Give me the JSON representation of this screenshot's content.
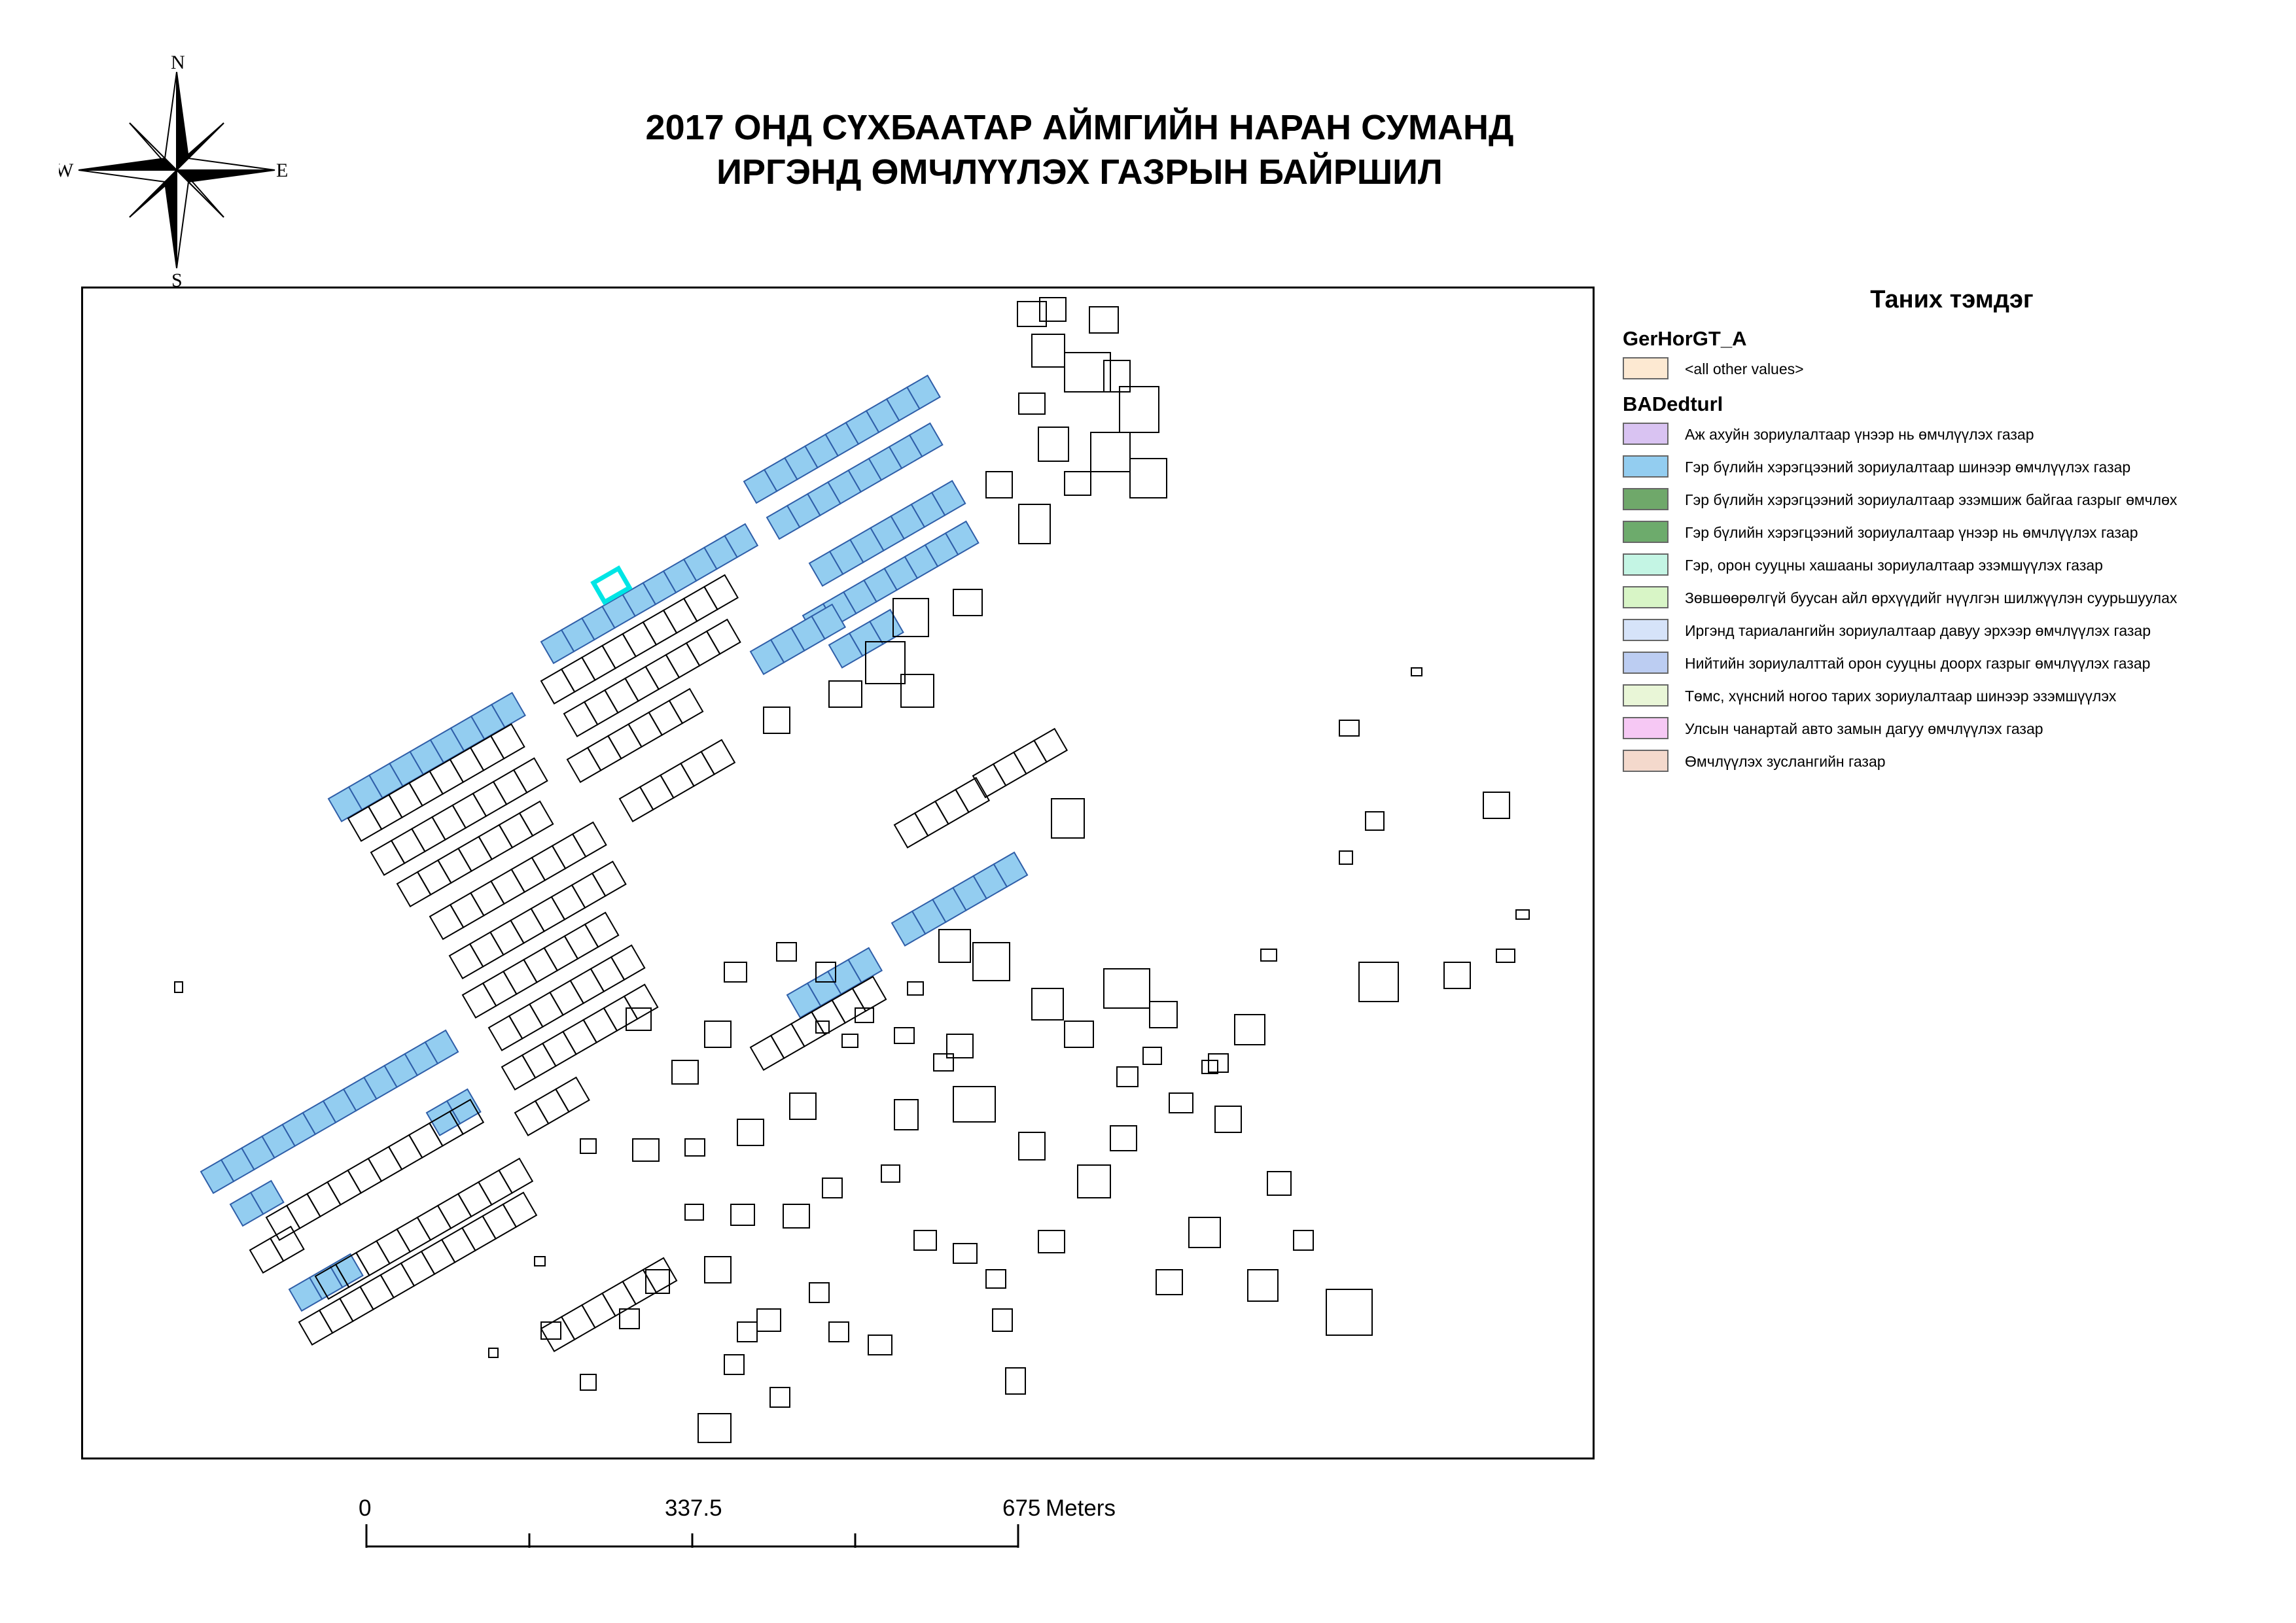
{
  "title": {
    "line1": "2017 ОНД СҮХБААТАР АЙМГИЙН НАРАН СУМАНД",
    "line2": "ИРГЭНД ӨМЧЛҮҮЛЭХ ГАЗРЫН БАЙРШИЛ"
  },
  "compass": {
    "north": "N",
    "south": "S",
    "east": "E",
    "west": "W"
  },
  "legend": {
    "title": "Таних тэмдэг",
    "layer1": {
      "name": "GerHorGT_A",
      "items": [
        {
          "label": "<all other values>",
          "color": "#fde9d2"
        }
      ]
    },
    "layer2": {
      "name": "BADedturl",
      "items": [
        {
          "label": "Аж ахуйн зориулалтаар үнээр нь өмчлүүлэх газар",
          "color": "#d9c3f2"
        },
        {
          "label": "Гэр бүлийн хэрэгцээний зориулалтаар шинээр  өмчлүүлэх газар",
          "color": "#93cdf0"
        },
        {
          "label": "Гэр бүлийн хэрэгцээний зориулалтаар эзэмшиж байгаа газрыг өмчлөх",
          "color": "#6fa86a"
        },
        {
          "label": "Гэр бүлийн хэрэгцээний зориулалтаар үнээр нь өмчлүүлэх газар",
          "color": "#6dab6c"
        },
        {
          "label": "Гэр, орон сууцны хашааны зориулалтаар  эзэмшүүлэх газар",
          "color": "#c4f5e4"
        },
        {
          "label": "Зөвшөөрөлгүй буусан айл өрхүүдийг нүүлгэн шилжүүлэн суурьшуулах",
          "color": "#d8f5c6"
        },
        {
          "label": "Иргэнд тариалангийн зориулалтаар давуу эрхээр өмчлүүлэх газар",
          "color": "#d6e3f9"
        },
        {
          "label": "Нийтийн зориулалттай орон сууцны доорх газрыг өмчлүүлэх газар",
          "color": "#bccdf2"
        },
        {
          "label": "Төмс, хүнсний ногоо тарих зориулалтаар шинээр эзэмшүүлэх",
          "color": "#e9f6d7"
        },
        {
          "label": "Улсын чанартай авто замын дагуу өмчлүүлэх газар",
          "color": "#f6c8f4"
        },
        {
          "label": "Өмчлүүлэх зуслангийн газар",
          "color": "#f4d9cc"
        }
      ]
    }
  },
  "scale": {
    "tick0": "0",
    "tick1": "337.5",
    "tick2": "675",
    "unit": "Meters"
  },
  "map": {
    "highlight_color": "#00e5e5",
    "parcel_fill": "#93cdf0",
    "parcel_stroke": "#2f5ea8"
  }
}
